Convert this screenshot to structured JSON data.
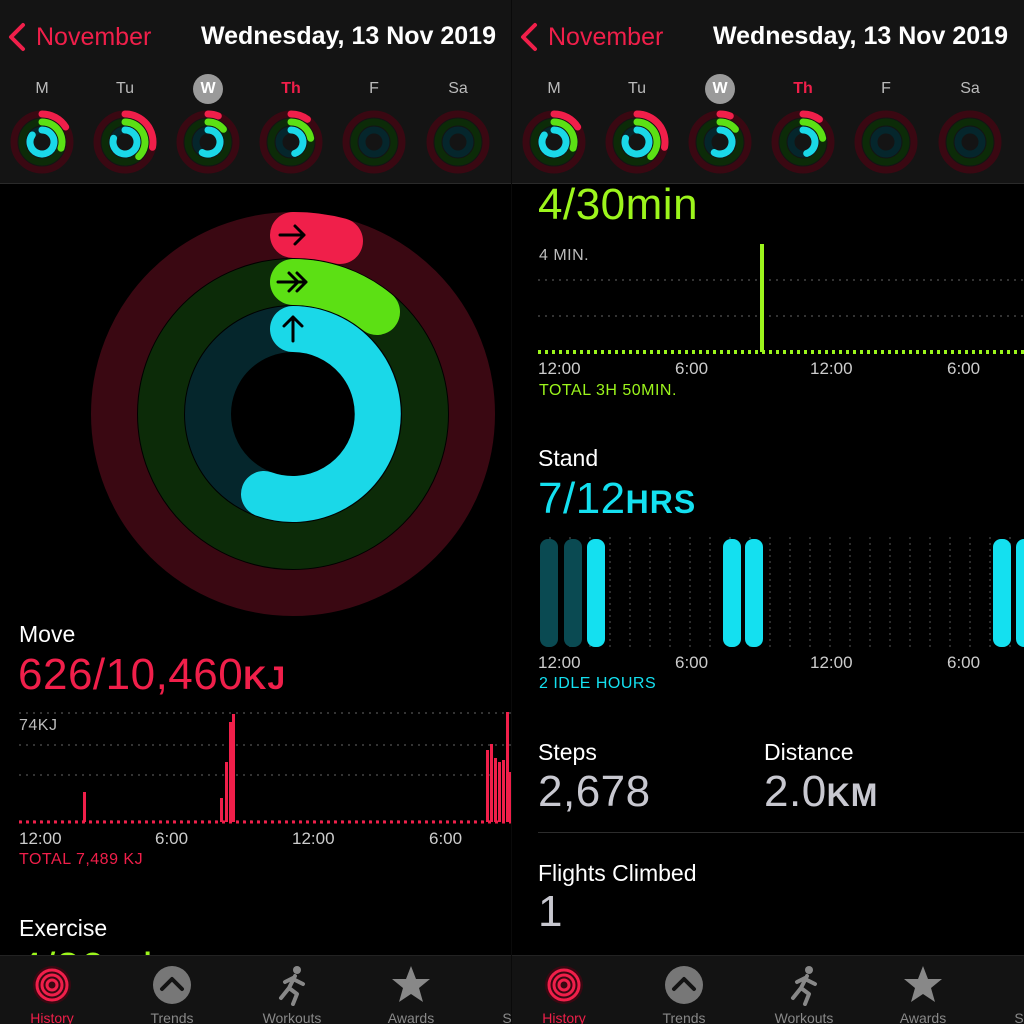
{
  "header": {
    "back_label": "November",
    "date": "Wednesday, 13 Nov 2019"
  },
  "week": [
    {
      "label": "M"
    },
    {
      "label": "Tu"
    },
    {
      "label": "W"
    },
    {
      "label": "Th"
    },
    {
      "label": "F"
    },
    {
      "label": "Sa"
    }
  ],
  "move": {
    "title": "Move",
    "value": "626/10,460",
    "unit": "KJ",
    "max_label": "74KJ",
    "total": "TOTAL 7,489 KJ",
    "ticks": [
      "12:00",
      "6:00",
      "12:00",
      "6:00"
    ],
    "color": "#f01f4a"
  },
  "exercise": {
    "title": "Exercise",
    "value": "4/30min",
    "max_label": "4 MIN.",
    "total": "TOTAL 3H 50MIN.",
    "ticks": [
      "12:00",
      "6:00",
      "12:00",
      "6:00"
    ],
    "color": "#9cf51c"
  },
  "stand": {
    "title": "Stand",
    "value": "7/12",
    "unit": "HRS",
    "idle": "2 IDLE HOURS",
    "ticks": [
      "12:00",
      "6:00",
      "12:00",
      "6:00"
    ],
    "color": "#14e0f0"
  },
  "steps": {
    "title": "Steps",
    "value": "2,678"
  },
  "distance": {
    "title": "Distance",
    "value": "2.0",
    "unit": "KM"
  },
  "flights": {
    "title": "Flights Climbed",
    "value": "1"
  },
  "tabs": [
    {
      "label": "History",
      "icon": "history-rings-icon",
      "active": true
    },
    {
      "label": "Trends",
      "icon": "trends-chevron-icon",
      "active": false
    },
    {
      "label": "Workouts",
      "icon": "running-figure-icon",
      "active": false
    },
    {
      "label": "Awards",
      "icon": "awards-star-icon",
      "active": false
    },
    {
      "label": "S",
      "icon": "",
      "active": false
    }
  ]
}
